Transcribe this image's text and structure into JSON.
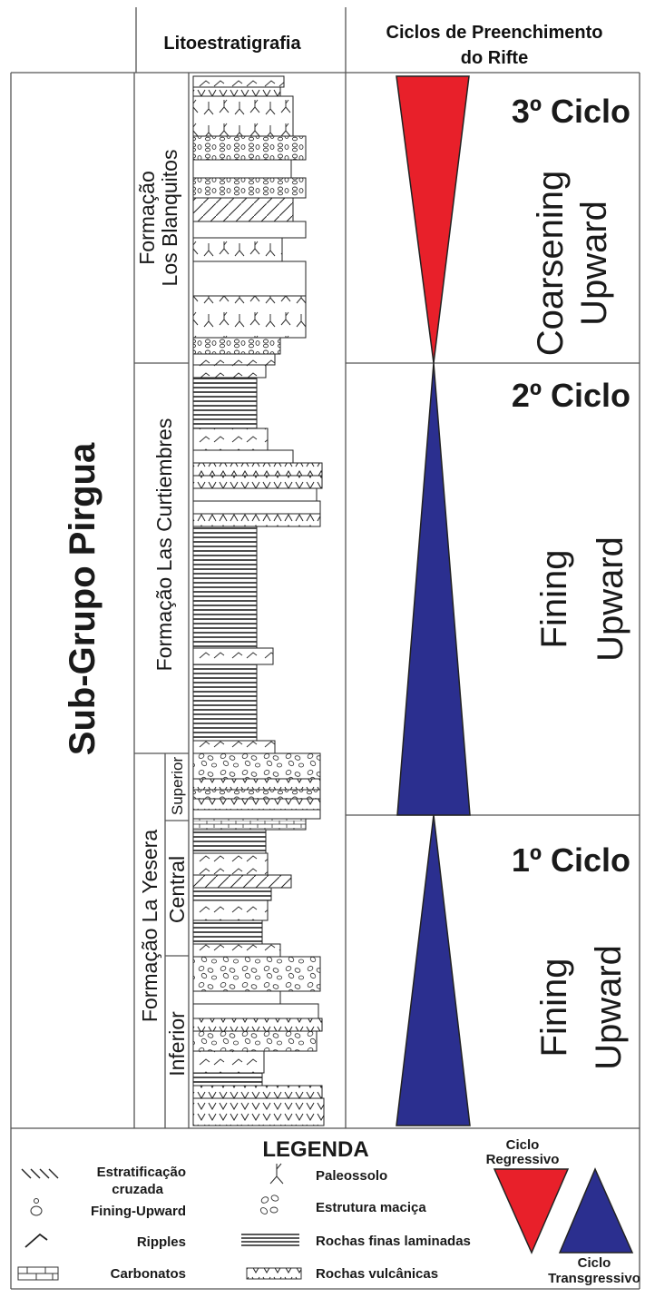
{
  "header": {
    "lithostratigraphy": "Litoestratigrafia",
    "cycles_line1": "Ciclos de Preenchimento",
    "cycles_line2": "do Rifte"
  },
  "group": "Sub-Grupo Pirgua",
  "formations": {
    "los_blanquitos_line1": "Formação",
    "los_blanquitos_line2": "Los Blanquitos",
    "las_curtiembres": "Formação Las Curtiembres",
    "la_yesera": "Formação La Yesera",
    "la_yesera_members": [
      "Superior",
      "Central",
      "Inferior"
    ]
  },
  "cycles": [
    {
      "label": "3º Ciclo",
      "trend_line1": "Coarsening",
      "trend_line2": "Upward",
      "kind": "regressive",
      "color": "#e8202a"
    },
    {
      "label": "2º Ciclo",
      "trend_line1": "Fining",
      "trend_line2": "Upward",
      "kind": "transgressive",
      "color": "#2b2f8f"
    },
    {
      "label": "1º Ciclo",
      "trend_line1": "Fining",
      "trend_line2": "Upward",
      "kind": "transgressive",
      "color": "#2b2f8f"
    }
  ],
  "legend": {
    "title": "LEGENDA",
    "items": [
      {
        "label": "Estratificação",
        "label2": "cruzada",
        "icon": "cross-stratification-icon"
      },
      {
        "label": "Fining-Upward",
        "icon": "fining-upward-icon"
      },
      {
        "label": "Ripples",
        "icon": "ripples-icon"
      },
      {
        "label": "Carbonatos",
        "icon": "carbonates-icon"
      },
      {
        "label": "Paleossolo",
        "icon": "paleosol-icon"
      },
      {
        "label": "Estrutura maciça",
        "icon": "massive-structure-icon"
      },
      {
        "label": "Rochas finas laminadas",
        "icon": "laminated-rocks-icon"
      },
      {
        "label": "Rochas vulcânicas",
        "icon": "volcanic-rocks-icon"
      }
    ],
    "regressive_label": "Ciclo",
    "regressive_label2": "Regressivo",
    "transgressive_label": "Ciclo",
    "transgressive_label2": "Transgressivo",
    "regressive_color": "#e8202a",
    "transgressive_color": "#2b2f8f"
  }
}
